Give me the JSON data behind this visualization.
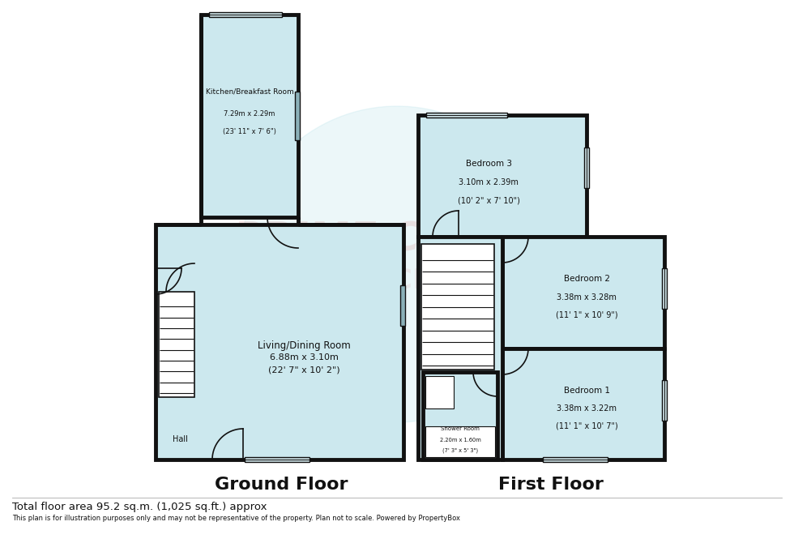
{
  "bg_color": "#ffffff",
  "wall_color": "#111111",
  "floor_color": "#cce8ee",
  "wall_lw": 3.5,
  "thin_lw": 1.2,
  "ground_floor_label": "Ground Floor",
  "first_floor_label": "First Floor",
  "footer_line1": "Total floor area 95.2 sq.m. (1,025 sq.ft.) approx",
  "footer_line2": "This plan is for illustration purposes only and may not be representative of the property. Plan not to scale. Powered by PropertyBox",
  "rooms": {
    "kitchen": {
      "label": "Kitchen/Breakfast Room",
      "dim1": "7.29m x 2.29m",
      "dim2": "(23' 11\" x 7' 6\")"
    },
    "living": {
      "label": "Living/Dining Room",
      "dim1": "6.88m x 3.10m",
      "dim2": "(22' 7\" x 10' 2\")"
    },
    "hall": {
      "label": "Hall"
    },
    "bedroom1": {
      "label": "Bedroom 1",
      "dim1": "3.38m x 3.22m",
      "dim2": "(11' 1\" x 10' 7\")"
    },
    "bedroom2": {
      "label": "Bedroom 2",
      "dim1": "3.38m x 3.28m",
      "dim2": "(11' 1\" x 10' 9\")"
    },
    "bedroom3": {
      "label": "Bedroom 3",
      "dim1": "3.10m x 2.39m",
      "dim2": "(10' 2\" x 7' 10\")"
    },
    "shower": {
      "label": "Shower Room",
      "dim1": "2.20m x 1.60m",
      "dim2": "(7' 3\" x 5' 3\")"
    }
  }
}
